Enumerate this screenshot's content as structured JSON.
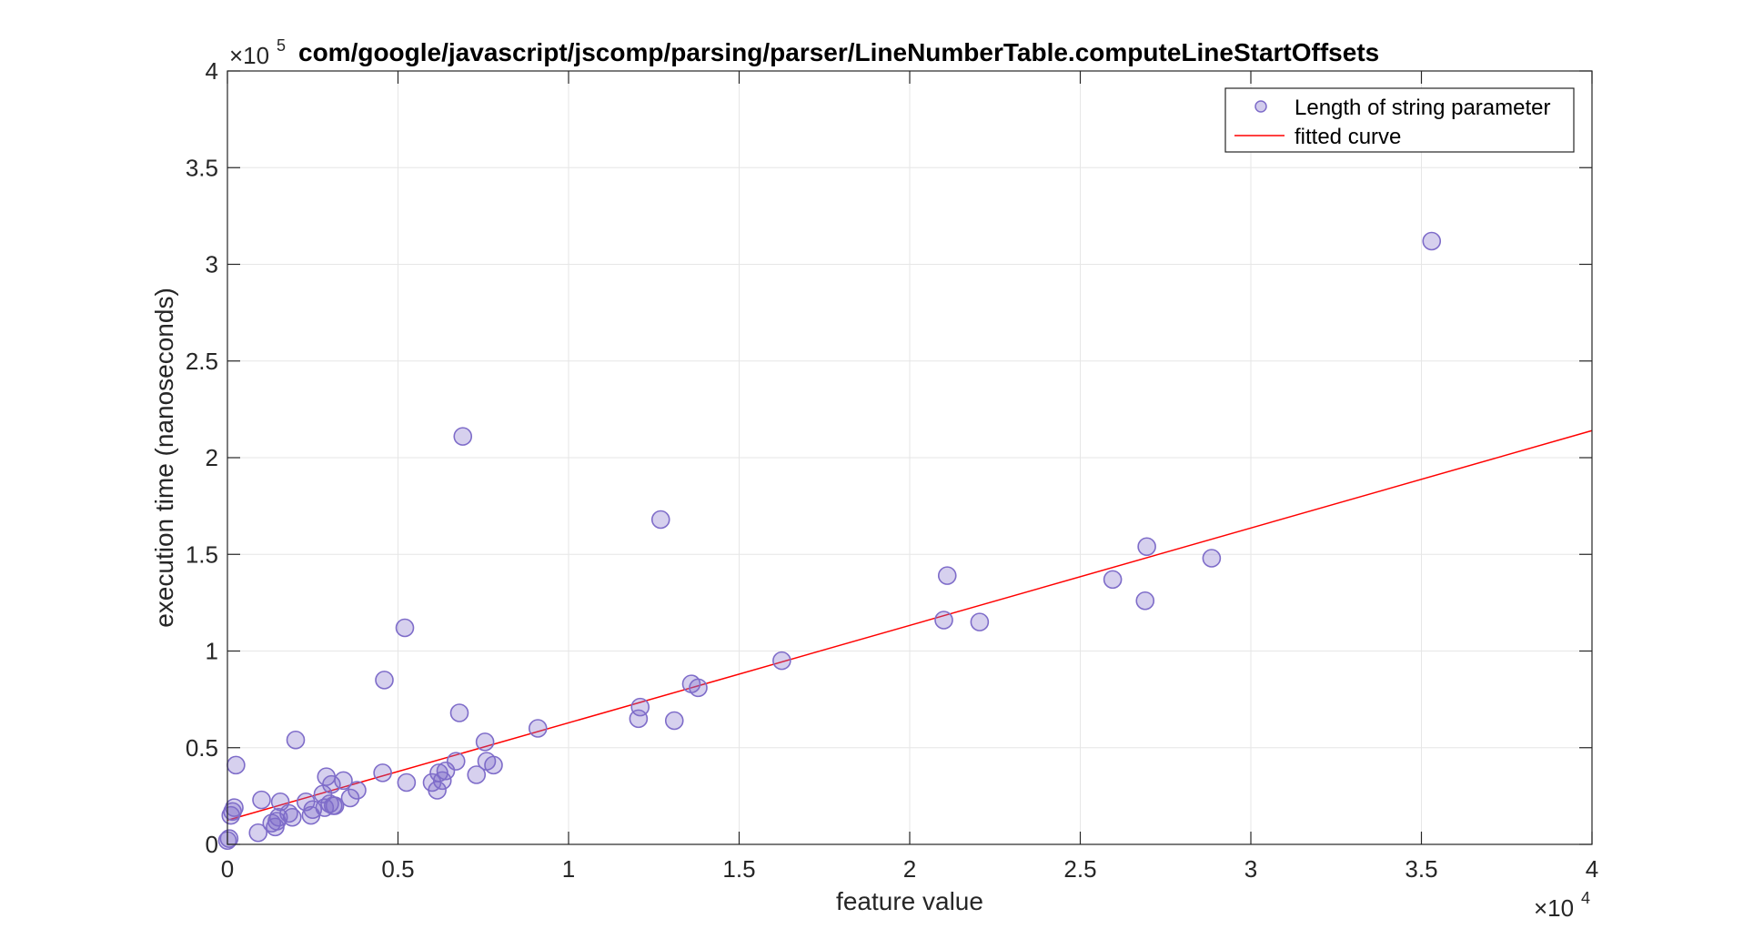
{
  "chart_data": {
    "type": "scatter",
    "title": "com/google/javascript/jscomp/parsing/parser/LineNumberTable.computeLineStartOffsets",
    "xlabel": "feature value",
    "ylabel": "execution time (nanoseconds)",
    "x_multiplier": {
      "base": "×10",
      "exp": "4"
    },
    "y_multiplier": {
      "base": "×10",
      "exp": "5"
    },
    "xlim": [
      0,
      40000
    ],
    "ylim": [
      0,
      400000
    ],
    "x_ticks": [
      0,
      5000,
      10000,
      15000,
      20000,
      25000,
      30000,
      35000,
      40000
    ],
    "x_tick_labels": [
      "0",
      "0.5",
      "1",
      "1.5",
      "2",
      "2.5",
      "3",
      "3.5",
      "4"
    ],
    "y_ticks": [
      0,
      50000,
      100000,
      150000,
      200000,
      250000,
      300000,
      350000,
      400000
    ],
    "y_tick_labels": [
      "0",
      "0.5",
      "1",
      "1.5",
      "2",
      "2.5",
      "3",
      "3.5",
      "4"
    ],
    "grid": true,
    "legend_position": "top-right",
    "series": [
      {
        "name": "Length of string parameter",
        "kind": "scatter",
        "color": "#7e6cc9",
        "points": [
          [
            0,
            2000
          ],
          [
            50,
            3000
          ],
          [
            100,
            15000
          ],
          [
            150,
            17000
          ],
          [
            200,
            19000
          ],
          [
            250,
            41000
          ],
          [
            900,
            6000
          ],
          [
            1000,
            23000
          ],
          [
            1300,
            11000
          ],
          [
            1400,
            9000
          ],
          [
            1450,
            12000
          ],
          [
            1500,
            14000
          ],
          [
            1550,
            22000
          ],
          [
            1800,
            16000
          ],
          [
            1900,
            14000
          ],
          [
            2000,
            54000
          ],
          [
            2300,
            22000
          ],
          [
            2450,
            15000
          ],
          [
            2500,
            18000
          ],
          [
            2800,
            26000
          ],
          [
            2850,
            19000
          ],
          [
            2900,
            35000
          ],
          [
            3000,
            21000
          ],
          [
            3050,
            31000
          ],
          [
            3100,
            20000
          ],
          [
            3150,
            20000
          ],
          [
            3400,
            33000
          ],
          [
            3600,
            24000
          ],
          [
            3800,
            28000
          ],
          [
            4550,
            37000
          ],
          [
            4600,
            85000
          ],
          [
            5200,
            112000
          ],
          [
            5250,
            32000
          ],
          [
            6000,
            32000
          ],
          [
            6150,
            28000
          ],
          [
            6200,
            37000
          ],
          [
            6300,
            33000
          ],
          [
            6400,
            38000
          ],
          [
            6700,
            43000
          ],
          [
            6800,
            68000
          ],
          [
            6900,
            211000
          ],
          [
            7300,
            36000
          ],
          [
            7550,
            53000
          ],
          [
            7600,
            43000
          ],
          [
            7800,
            41000
          ],
          [
            9100,
            60000
          ],
          [
            12050,
            65000
          ],
          [
            12100,
            71000
          ],
          [
            12700,
            168000
          ],
          [
            13100,
            64000
          ],
          [
            13600,
            83000
          ],
          [
            13800,
            81000
          ],
          [
            16250,
            95000
          ],
          [
            21000,
            116000
          ],
          [
            21100,
            139000
          ],
          [
            22050,
            115000
          ],
          [
            25950,
            137000
          ],
          [
            26900,
            126000
          ],
          [
            26950,
            154000
          ],
          [
            28850,
            148000
          ],
          [
            35300,
            312000
          ]
        ]
      },
      {
        "name": "fitted curve",
        "kind": "line",
        "color": "#ff0000",
        "x": [
          0,
          40000
        ],
        "y": [
          12500,
          214000
        ]
      }
    ]
  }
}
